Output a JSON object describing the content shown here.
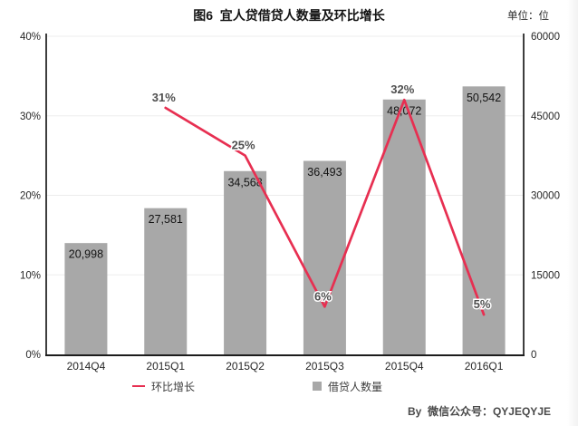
{
  "title": "图6  宜人贷借贷人数量及环比增长",
  "unit_label": "单位：位",
  "attribution": "By  微信公众号：QYJEQYJE",
  "legend": [
    {
      "label": "环比增长",
      "marker": "line"
    },
    {
      "label": "借贷人数量",
      "marker": "square"
    }
  ],
  "colors": {
    "bar": "#a8a8a8",
    "line": "#e72f51",
    "grid": "#ededed",
    "axis": "#1c1c1c",
    "percent_label": "#4f4f4f",
    "bar_label": "#131313",
    "tick_text": "#262626",
    "x_label_text": "#262626"
  },
  "chart_data": {
    "type": "combo-bar-line",
    "title": "图6 宜人贷借贷人数量及环比增长",
    "unit": "位",
    "categories": [
      "2014Q4",
      "2015Q1",
      "2015Q2",
      "2015Q3",
      "2015Q4",
      "2016Q1"
    ],
    "series": [
      {
        "name": "借贷人数量",
        "type": "bar",
        "axis": "right",
        "values": [
          20998,
          27581,
          34568,
          36493,
          48072,
          50542
        ],
        "value_labels": [
          "20,998",
          "27,581",
          "34,568",
          "36,493",
          "48,072",
          "50,542"
        ]
      },
      {
        "name": "环比增长",
        "type": "line",
        "axis": "left",
        "values": [
          null,
          31,
          25,
          6,
          32,
          5
        ],
        "value_labels": [
          null,
          "31%",
          "25%",
          "6%",
          "32%",
          "5%"
        ]
      }
    ],
    "left_axis": {
      "min": 0,
      "max": 40,
      "tick_values": [
        0,
        10,
        20,
        30,
        40
      ],
      "tick_labels": [
        "0%",
        "10%",
        "20%",
        "30%",
        "40%"
      ]
    },
    "right_axis": {
      "min": 0,
      "max": 60000,
      "tick_values": [
        0,
        15000,
        30000,
        45000,
        60000
      ],
      "tick_labels": [
        "0",
        "15000",
        "30000",
        "45000",
        "60000"
      ]
    },
    "grid": true,
    "legend_position": "bottom"
  }
}
